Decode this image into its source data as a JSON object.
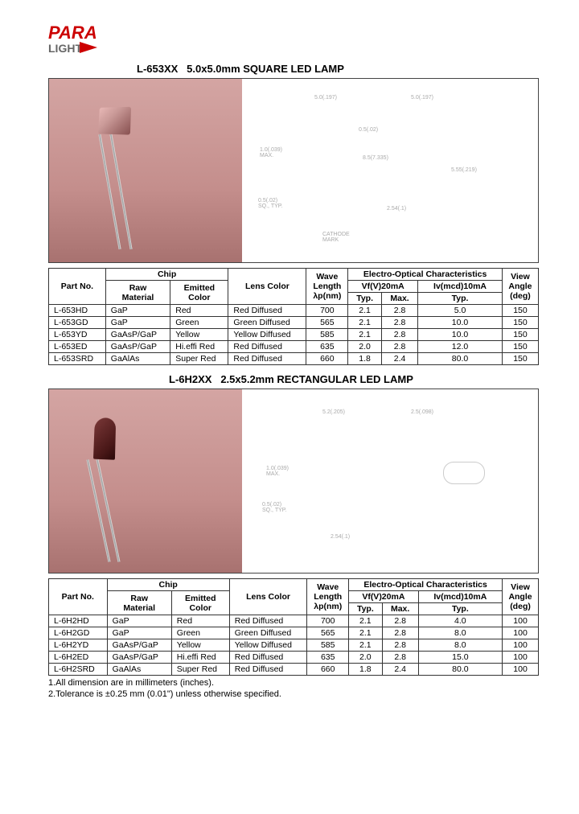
{
  "logo": {
    "top": "PARA",
    "bottom": "LIGHT"
  },
  "section1": {
    "title_model": "L-653XX",
    "title_desc": "5.0x5.0mm SQUARE LED LAMP",
    "table": {
      "headers": {
        "part_no": "Part No.",
        "chip": "Chip",
        "raw_material": "Raw\nMaterial",
        "emitted_color": "Emitted\nColor",
        "lens_color": "Lens Color",
        "wave_length": "Wave\nLength\nλp(nm)",
        "eoc": "Electro-Optical Characteristics",
        "vf": "Vf(V)20mA",
        "iv": "Iv(mcd)10mA",
        "typ": "Typ.",
        "max": "Max.",
        "view_angle": "View\nAngle\n(deg)"
      },
      "rows": [
        {
          "part": "L-653HD",
          "mat": "GaP",
          "color": "Red",
          "lens": "Red Diffused",
          "wl": "700",
          "vft": "2.1",
          "vfm": "2.8",
          "ivt": "5.0",
          "va": "150"
        },
        {
          "part": "L-653GD",
          "mat": "GaP",
          "color": "Green",
          "lens": "Green Diffused",
          "wl": "565",
          "vft": "2.1",
          "vfm": "2.8",
          "ivt": "10.0",
          "va": "150"
        },
        {
          "part": "L-653YD",
          "mat": "GaAsP/GaP",
          "color": "Yellow",
          "lens": "Yellow Diffused",
          "wl": "585",
          "vft": "2.1",
          "vfm": "2.8",
          "ivt": "10.0",
          "va": "150"
        },
        {
          "part": "L-653ED",
          "mat": "GaAsP/GaP",
          "color": "Hi.effi Red",
          "lens": "Red Diffused",
          "wl": "635",
          "vft": "2.0",
          "vfm": "2.8",
          "ivt": "12.0",
          "va": "150"
        },
        {
          "part": "L-653SRD",
          "mat": "GaAlAs",
          "color": "Super Red",
          "lens": "Red Diffused",
          "wl": "660",
          "vft": "1.8",
          "vfm": "2.4",
          "ivt": "80.0",
          "va": "150"
        }
      ]
    }
  },
  "section2": {
    "title_model": "L-6H2XX",
    "title_desc": "2.5x5.2mm RECTANGULAR LED LAMP",
    "table": {
      "rows": [
        {
          "part": "L-6H2HD",
          "mat": "GaP",
          "color": "Red",
          "lens": "Red Diffused",
          "wl": "700",
          "vft": "2.1",
          "vfm": "2.8",
          "ivt": "4.0",
          "va": "100"
        },
        {
          "part": "L-6H2GD",
          "mat": "GaP",
          "color": "Green",
          "lens": "Green Diffused",
          "wl": "565",
          "vft": "2.1",
          "vfm": "2.8",
          "ivt": "8.0",
          "va": "100"
        },
        {
          "part": "L-6H2YD",
          "mat": "GaAsP/GaP",
          "color": "Yellow",
          "lens": "Yellow Diffused",
          "wl": "585",
          "vft": "2.1",
          "vfm": "2.8",
          "ivt": "8.0",
          "va": "100"
        },
        {
          "part": "L-6H2ED",
          "mat": "GaAsP/GaP",
          "color": "Hi.effi Red",
          "lens": "Red Diffused",
          "wl": "635",
          "vft": "2.0",
          "vfm": "2.8",
          "ivt": "15.0",
          "va": "100"
        },
        {
          "part": "L-6H2SRD",
          "mat": "GaAlAs",
          "color": "Super Red",
          "lens": "Red Diffused",
          "wl": "660",
          "vft": "1.8",
          "vfm": "2.4",
          "ivt": "80.0",
          "va": "100"
        }
      ]
    }
  },
  "notes": {
    "n1": "1.All dimension are in millimeters (inches).",
    "n2": "2.Tolerance is ±0.25 mm (0.01\") unless otherwise specified."
  }
}
